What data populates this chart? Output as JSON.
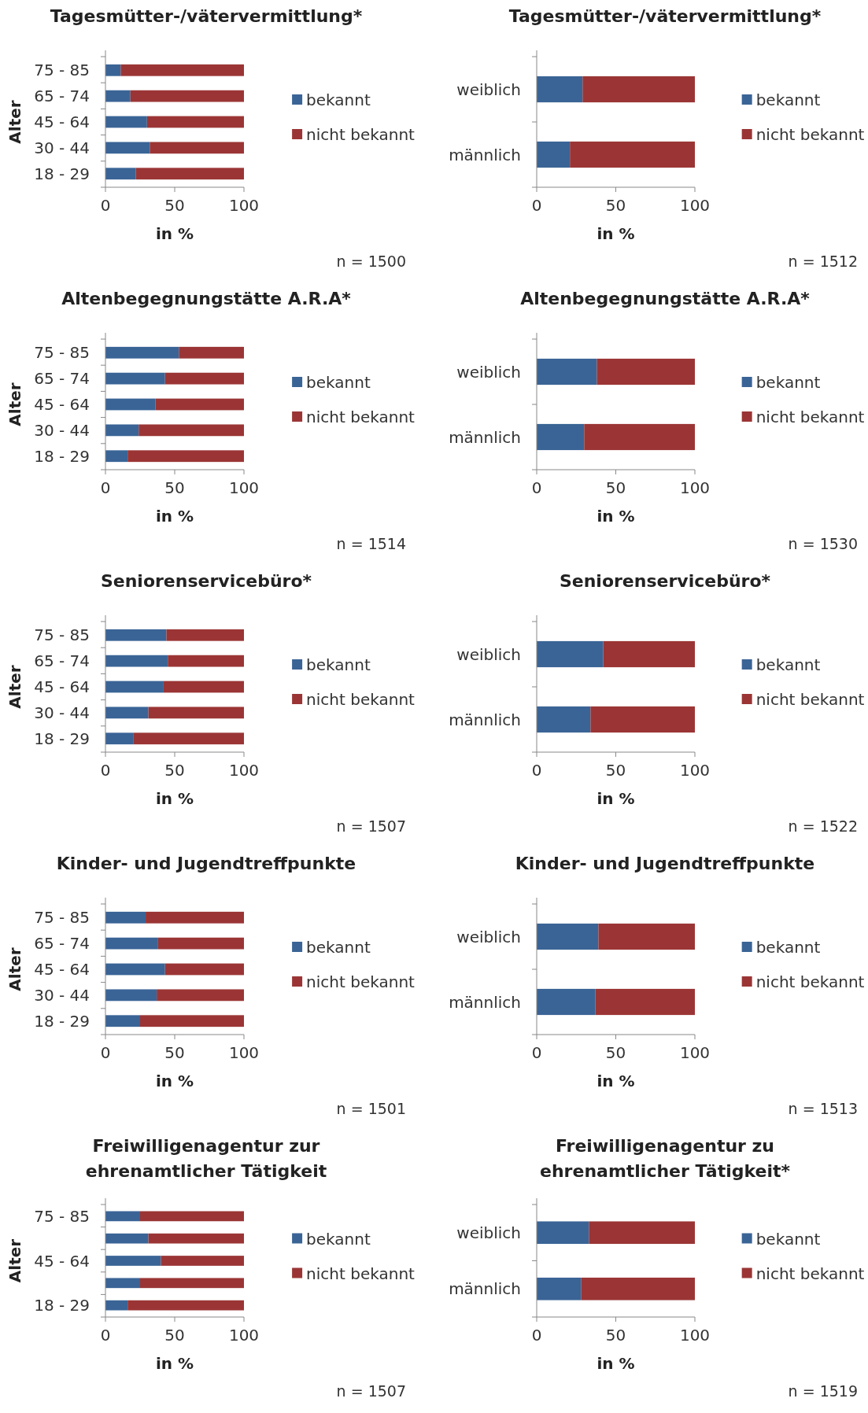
{
  "chart_data": [
    {
      "type": "bar",
      "orientation": "horizontal",
      "stacked": true,
      "title": "Tagesmütter-/vätervermittlung*",
      "xlabel": "in %",
      "ylabel": "Alter",
      "categories": [
        "75 - 85",
        "65 - 74",
        "45 - 64",
        "30 - 44",
        "18 - 29"
      ],
      "series": [
        {
          "name": "bekannt",
          "color": "#3a6496",
          "values": [
            11,
            18,
            30,
            32,
            22
          ]
        },
        {
          "name": "nicht bekannt",
          "color": "#9b3535",
          "values": [
            89,
            82,
            70,
            68,
            78
          ]
        }
      ],
      "xlim": [
        0,
        100
      ],
      "xticks": [
        0,
        50,
        100
      ],
      "legend": "right",
      "annotations": [
        "n = 1500"
      ]
    },
    {
      "type": "bar",
      "orientation": "horizontal",
      "stacked": true,
      "title": "Tagesmütter-/vätervermittlung*",
      "xlabel": "in %",
      "categories": [
        "weiblich",
        "männlich"
      ],
      "series": [
        {
          "name": "bekannt",
          "color": "#3a6496",
          "values": [
            29,
            21
          ]
        },
        {
          "name": "nicht bekannt",
          "color": "#9b3535",
          "values": [
            71,
            79
          ]
        }
      ],
      "xlim": [
        0,
        100
      ],
      "xticks": [
        0,
        50,
        100
      ],
      "legend": "right",
      "annotations": [
        "n = 1512"
      ]
    },
    {
      "type": "bar",
      "orientation": "horizontal",
      "stacked": true,
      "title": "Altenbegegnungstätte A.R.A*",
      "xlabel": "in %",
      "ylabel": "Alter",
      "categories": [
        "75 - 85",
        "65 - 74",
        "45 - 64",
        "30 - 44",
        "18 - 29"
      ],
      "series": [
        {
          "name": "bekannt",
          "color": "#3a6496",
          "values": [
            53,
            43,
            36,
            24,
            16
          ]
        },
        {
          "name": "nicht bekannt",
          "color": "#9b3535",
          "values": [
            47,
            57,
            64,
            76,
            84
          ]
        }
      ],
      "xlim": [
        0,
        100
      ],
      "xticks": [
        0,
        50,
        100
      ],
      "legend": "right",
      "annotations": [
        "n = 1514"
      ]
    },
    {
      "type": "bar",
      "orientation": "horizontal",
      "stacked": true,
      "title": "Altenbegegnungstätte A.R.A*",
      "xlabel": "in %",
      "categories": [
        "weiblich",
        "männlich"
      ],
      "series": [
        {
          "name": "bekannt",
          "color": "#3a6496",
          "values": [
            38,
            30
          ]
        },
        {
          "name": "nicht bekannt",
          "color": "#9b3535",
          "values": [
            62,
            70
          ]
        }
      ],
      "xlim": [
        0,
        100
      ],
      "xticks": [
        0,
        50,
        100
      ],
      "legend": "right",
      "annotations": [
        "n = 1530"
      ]
    },
    {
      "type": "bar",
      "orientation": "horizontal",
      "stacked": true,
      "title": "Seniorenservicebüro*",
      "xlabel": "in %",
      "ylabel": "Alter",
      "categories": [
        "75 - 85",
        "65 - 74",
        "45 - 64",
        "30 - 44",
        "18 - 29"
      ],
      "series": [
        {
          "name": "bekannt",
          "color": "#3a6496",
          "values": [
            44,
            45,
            42,
            31,
            20
          ]
        },
        {
          "name": "nicht bekannt",
          "color": "#9b3535",
          "values": [
            56,
            55,
            58,
            69,
            80
          ]
        }
      ],
      "xlim": [
        0,
        100
      ],
      "xticks": [
        0,
        50,
        100
      ],
      "legend": "right",
      "annotations": [
        "n = 1507"
      ]
    },
    {
      "type": "bar",
      "orientation": "horizontal",
      "stacked": true,
      "title": "Seniorenservicebüro*",
      "xlabel": "in %",
      "categories": [
        "weiblich",
        "männlich"
      ],
      "series": [
        {
          "name": "bekannt",
          "color": "#3a6496",
          "values": [
            42,
            34
          ]
        },
        {
          "name": "nicht bekannt",
          "color": "#9b3535",
          "values": [
            58,
            66
          ]
        }
      ],
      "xlim": [
        0,
        100
      ],
      "xticks": [
        0,
        50,
        100
      ],
      "legend": "right",
      "annotations": [
        "n = 1522"
      ]
    },
    {
      "type": "bar",
      "orientation": "horizontal",
      "stacked": true,
      "title": "Kinder- und Jugendtreffpunkte",
      "xlabel": "in %",
      "ylabel": "Alter",
      "categories": [
        "75 - 85",
        "65 - 74",
        "45 - 64",
        "30 - 44",
        "18 - 29"
      ],
      "series": [
        {
          "name": "bekannt",
          "color": "#3a6496",
          "values": [
            29,
            38,
            43,
            37,
            25
          ]
        },
        {
          "name": "nicht bekannt",
          "color": "#9b3535",
          "values": [
            71,
            62,
            57,
            63,
            75
          ]
        }
      ],
      "xlim": [
        0,
        100
      ],
      "xticks": [
        0,
        50,
        100
      ],
      "legend": "right",
      "annotations": [
        "n = 1501"
      ]
    },
    {
      "type": "bar",
      "orientation": "horizontal",
      "stacked": true,
      "title": "Kinder- und Jugendtreffpunkte",
      "xlabel": "in %",
      "categories": [
        "weiblich",
        "männlich"
      ],
      "series": [
        {
          "name": "bekannt",
          "color": "#3a6496",
          "values": [
            39,
            37
          ]
        },
        {
          "name": "nicht bekannt",
          "color": "#9b3535",
          "values": [
            61,
            63
          ]
        }
      ],
      "xlim": [
        0,
        100
      ],
      "xticks": [
        0,
        50,
        100
      ],
      "legend": "right",
      "annotations": [
        "n = 1513"
      ]
    },
    {
      "type": "bar",
      "orientation": "horizontal",
      "stacked": true,
      "title": "Freiwilligenagentur zur\nehrenamtlicher Tätigkeit",
      "xlabel": "in %",
      "ylabel": "Alter",
      "categories": [
        "75 - 85",
        null,
        "45 - 64",
        null,
        "18 - 29"
      ],
      "series": [
        {
          "name": "bekannt",
          "color": "#3a6496",
          "values": [
            25,
            31,
            40,
            25,
            16
          ]
        },
        {
          "name": "nicht bekannt",
          "color": "#9b3535",
          "values": [
            75,
            69,
            60,
            75,
            84
          ]
        }
      ],
      "xlim": [
        0,
        100
      ],
      "xticks": [
        0,
        50,
        100
      ],
      "legend": "right",
      "annotations": [
        "n = 1507"
      ]
    },
    {
      "type": "bar",
      "orientation": "horizontal",
      "stacked": true,
      "title": "Freiwilligenagentur zu\nehrenamtlicher Tätigkeit*",
      "xlabel": "in %",
      "categories": [
        "weiblich",
        "männlich"
      ],
      "series": [
        {
          "name": "bekannt",
          "color": "#3a6496",
          "values": [
            33,
            28
          ]
        },
        {
          "name": "nicht bekannt",
          "color": "#9b3535",
          "values": [
            67,
            72
          ]
        }
      ],
      "xlim": [
        0,
        100
      ],
      "xticks": [
        0,
        50,
        100
      ],
      "legend": "right",
      "annotations": [
        "n = 1519"
      ]
    }
  ]
}
